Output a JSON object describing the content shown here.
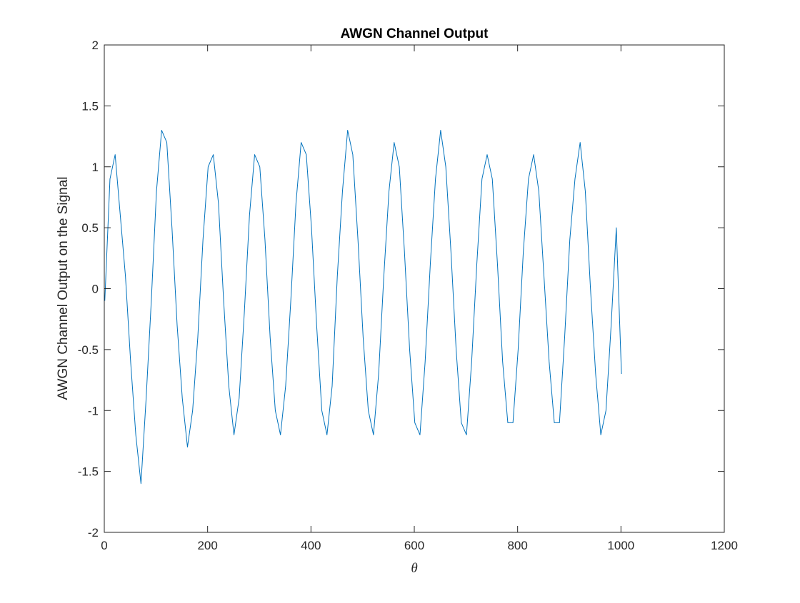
{
  "chart_data": {
    "type": "line",
    "title": "AWGN Channel Output",
    "xlabel": "θ",
    "ylabel": "AWGN Channel Output on the Signal",
    "xlim": [
      0,
      1200
    ],
    "ylim": [
      -2,
      2
    ],
    "xticks": [
      0,
      200,
      400,
      600,
      800,
      1000,
      1200
    ],
    "yticks": [
      -2,
      -1.5,
      -1,
      -0.5,
      0,
      0.5,
      1,
      1.5,
      2
    ],
    "xtick_labels": [
      "0",
      "200",
      "400",
      "600",
      "800",
      "1000",
      "1200"
    ],
    "ytick_labels": [
      "-2",
      "-1.5",
      "-1",
      "-0.5",
      "0",
      "0.5",
      "1",
      "1.5",
      "2"
    ],
    "grid": false,
    "box": true,
    "series": [
      {
        "color": "#0072BD",
        "x_start": 1,
        "x_step": 10,
        "values": [
          -0.1,
          0.9,
          1.1,
          0.6,
          0.1,
          -0.6,
          -1.2,
          -1.6,
          -0.9,
          -0.1,
          0.8,
          1.3,
          1.2,
          0.5,
          -0.3,
          -0.9,
          -1.3,
          -1.0,
          -0.4,
          0.4,
          1.0,
          1.1,
          0.7,
          -0.1,
          -0.8,
          -1.2,
          -0.9,
          -0.2,
          0.6,
          1.1,
          1.0,
          0.4,
          -0.4,
          -1.0,
          -1.2,
          -0.8,
          -0.1,
          0.7,
          1.2,
          1.1,
          0.5,
          -0.3,
          -1.0,
          -1.2,
          -0.8,
          0.1,
          0.8,
          1.3,
          1.1,
          0.4,
          -0.4,
          -1.0,
          -1.2,
          -0.7,
          0.1,
          0.8,
          1.2,
          1.0,
          0.3,
          -0.5,
          -1.1,
          -1.2,
          -0.6,
          0.2,
          0.9,
          1.3,
          1.0,
          0.3,
          -0.5,
          -1.1,
          -1.2,
          -0.6,
          0.2,
          0.9,
          1.1,
          0.9,
          0.2,
          -0.6,
          -1.1,
          -1.1,
          -0.5,
          0.3,
          0.9,
          1.1,
          0.8,
          0.1,
          -0.6,
          -1.1,
          -1.1,
          -0.4,
          0.4,
          0.9,
          1.2,
          0.8,
          0.0,
          -0.7,
          -1.2,
          -1.0,
          -0.3,
          0.5,
          -0.7
        ]
      }
    ]
  }
}
